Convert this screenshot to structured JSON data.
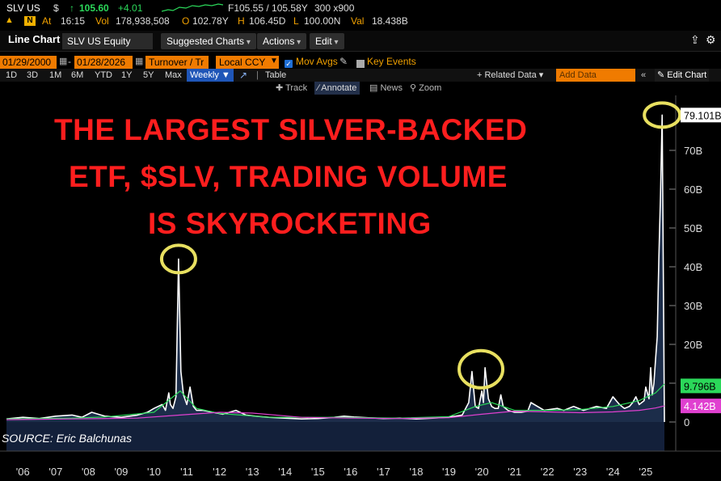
{
  "ticker": {
    "symbol": "SLV US",
    "currency": "$",
    "arrow": "↑",
    "price": "105.60",
    "change": "+4.01",
    "quote": "F105.55 / 105.58Y",
    "size": "300 x900",
    "time_label": "At",
    "time": "16:15",
    "vol_label": "Vol",
    "vol": "178,938,508",
    "open_label": "O",
    "open": "102.78Y",
    "high_label": "H",
    "high": "106.45D",
    "low_label": "L",
    "low": "100.00N",
    "val_label": "Val",
    "val": "18.438B"
  },
  "titlebar": {
    "title": "Line Chart",
    "security": "SLV US Equity",
    "menus": [
      "Suggested Charts",
      "Actions",
      "Edit"
    ]
  },
  "settings": {
    "start_date": "01/29/2000",
    "end_date": "01/28/2026",
    "field": "Turnover / Tr",
    "currency": "Local CCY",
    "mov_avgs": "Mov Avgs",
    "key_events": "Key Events"
  },
  "periods": {
    "items": [
      "1D",
      "3D",
      "1M",
      "6M",
      "YTD",
      "1Y",
      "5Y",
      "Max"
    ],
    "frequency": "Weekly",
    "table": "Table",
    "related_data": "+ Related Data",
    "add_data": "Add Data",
    "edit_chart": "Edit Chart"
  },
  "tools": {
    "track": "Track",
    "annotate": "Annotate",
    "news": "News",
    "zoom": "Zoom"
  },
  "headline": [
    "THE LARGEST SILVER-BACKED",
    "ETF, $SLV, TRADING VOLUME",
    "IS SKYROCKETING"
  ],
  "source": "SOURCE: Eric Balchunas",
  "colors": {
    "headline": "#ff1e1e",
    "volume": "#ffffff",
    "ma_green": "#2bd85a",
    "ma_magenta": "#e040d0",
    "highlight": "#e8e060",
    "accent": "#f07b00"
  },
  "chart_data": {
    "type": "area",
    "ylabel": "Turnover",
    "yunit": "B",
    "ylim": [
      0,
      80
    ],
    "yticks": [
      "0",
      "10B",
      "20B",
      "30B",
      "40B",
      "50B",
      "60B",
      "70B"
    ],
    "xticks": [
      "'06",
      "'07",
      "'08",
      "'09",
      "'10",
      "'11",
      "'12",
      "'13",
      "'14",
      "'15",
      "'16",
      "'17",
      "'18",
      "'19",
      "'20",
      "'21",
      "'22",
      "'23",
      "'24",
      "'25"
    ],
    "last_values": {
      "turnover": "79.101B",
      "mov_avg_short": "9.796B",
      "mov_avg_long": "4.142B"
    },
    "series": [
      {
        "name": "Turnover",
        "x": [
          2006.0,
          2006.5,
          2007.0,
          2007.5,
          2008.0,
          2008.3,
          2008.6,
          2009.0,
          2009.5,
          2010.0,
          2010.3,
          2010.5,
          2010.75,
          2010.85,
          2010.95,
          2011.0,
          2011.08,
          2011.17,
          2011.25,
          2011.32,
          2011.4,
          2011.5,
          2011.6,
          2011.7,
          2011.8,
          2012.0,
          2012.3,
          2012.6,
          2013.0,
          2013.3,
          2013.6,
          2014.0,
          2014.5,
          2015.0,
          2015.5,
          2016.0,
          2016.3,
          2016.6,
          2017.0,
          2017.5,
          2018.0,
          2018.5,
          2019.0,
          2019.4,
          2019.7,
          2019.9,
          2020.1,
          2020.2,
          2020.3,
          2020.4,
          2020.5,
          2020.55,
          2020.6,
          2020.7,
          2020.8,
          2020.9,
          2021.0,
          2021.08,
          2021.15,
          2021.3,
          2021.5,
          2021.7,
          2021.9,
          2022.0,
          2022.4,
          2022.8,
          2023.0,
          2023.3,
          2023.6,
          2024.0,
          2024.3,
          2024.5,
          2024.7,
          2024.85,
          2025.0,
          2025.1,
          2025.2,
          2025.3,
          2025.45,
          2025.5,
          2025.6,
          2025.65,
          2025.7,
          2025.75,
          2025.8,
          2025.85,
          2025.9,
          2025.95,
          2026.0,
          2026.07
        ],
        "values": [
          0.8,
          1.2,
          0.9,
          1.5,
          1.8,
          1.2,
          2.5,
          1.5,
          1.2,
          1.8,
          2.5,
          3.5,
          4.5,
          3.0,
          7.5,
          4.5,
          3.5,
          6.5,
          42,
          13,
          7.0,
          4.5,
          9.0,
          4.0,
          3.0,
          3.0,
          2.5,
          2.0,
          3.0,
          1.8,
          1.5,
          1.2,
          1.0,
          0.8,
          0.9,
          1.2,
          1.5,
          1.3,
          1.1,
          0.9,
          1.0,
          0.8,
          1.0,
          1.2,
          1.5,
          1.8,
          5.0,
          13,
          4.0,
          3.5,
          8.0,
          5.0,
          14,
          6.0,
          4.0,
          3.5,
          3.5,
          7.0,
          4.0,
          3.0,
          2.5,
          2.5,
          2.8,
          5.0,
          3.0,
          3.5,
          3.0,
          4.0,
          3.0,
          4.0,
          3.5,
          6.5,
          4.5,
          3.5,
          4.0,
          5.0,
          6.5,
          4.5,
          5.5,
          9.0,
          6.0,
          14,
          7.0,
          10,
          16,
          22,
          42,
          58,
          79.1,
          0
        ]
      },
      {
        "name": "Mov Avg 1",
        "x": [
          2006.0,
          2008.0,
          2009.0,
          2010.5,
          2011.3,
          2011.8,
          2012.5,
          2014.0,
          2016.0,
          2018.0,
          2019.5,
          2020.3,
          2020.8,
          2021.5,
          2022.5,
          2023.5,
          2024.5,
          2025.3,
          2025.8,
          2026.07
        ],
        "values": [
          0.8,
          1.0,
          1.3,
          2.5,
          8.0,
          3.5,
          2.2,
          1.2,
          1.2,
          1.0,
          1.4,
          4.0,
          5.0,
          3.0,
          3.0,
          3.2,
          4.0,
          5.5,
          7.5,
          9.8
        ]
      },
      {
        "name": "Mov Avg 2",
        "x": [
          2006.0,
          2008.0,
          2010.0,
          2011.3,
          2012.5,
          2013.5,
          2015.0,
          2016.5,
          2018.0,
          2019.5,
          2020.5,
          2021.5,
          2022.5,
          2023.5,
          2024.5,
          2025.3,
          2025.8,
          2026.07
        ],
        "values": [
          0.6,
          0.8,
          1.0,
          1.8,
          2.5,
          2.3,
          1.2,
          1.0,
          0.9,
          1.1,
          2.0,
          2.8,
          2.6,
          2.4,
          2.6,
          3.0,
          3.6,
          4.14
        ]
      }
    ],
    "highlights": [
      2011.25,
      2020.4,
      2026.0
    ]
  }
}
